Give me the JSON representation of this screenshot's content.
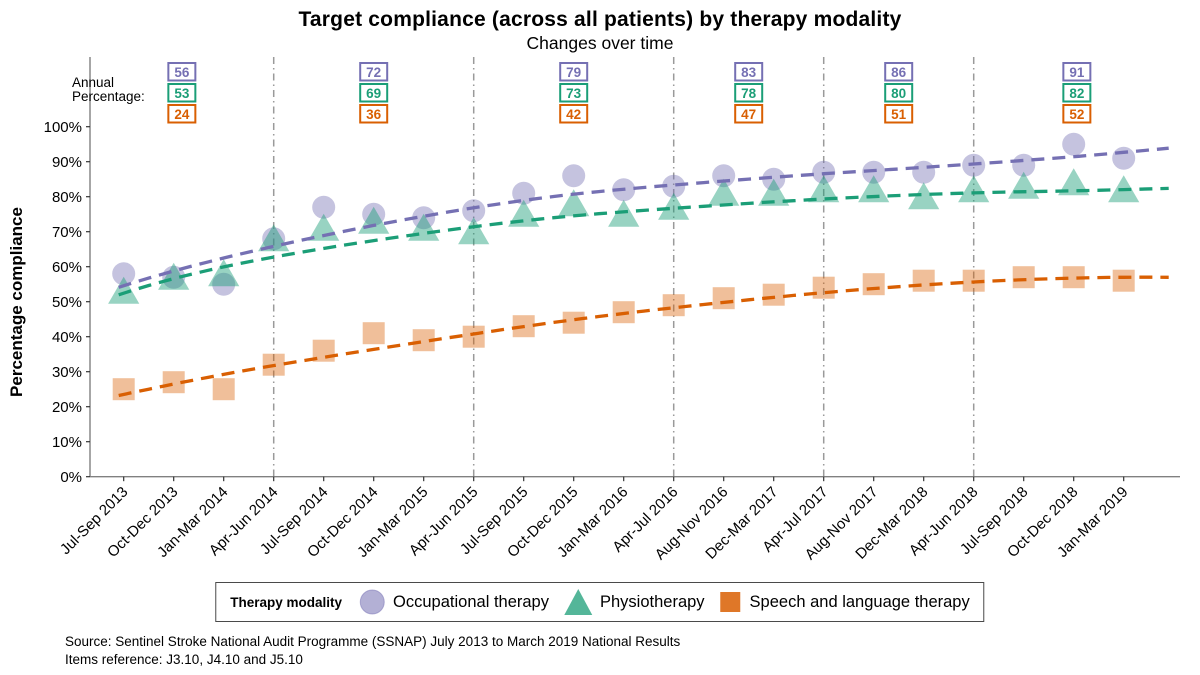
{
  "title": "Target compliance (across all patients) by therapy modality",
  "subtitle": "Changes over time",
  "annual_label": {
    "line1": "Annual",
    "line2": "Percentage:"
  },
  "chart_data": {
    "type": "scatter",
    "title": "Target compliance (across all patients) by therapy modality",
    "subtitle": "Changes over time",
    "xlabel": "",
    "ylabel": "Percentage compliance",
    "ylim": [
      0,
      100
    ],
    "ytick_values": [
      0,
      10,
      20,
      30,
      40,
      50,
      60,
      70,
      80,
      90,
      100
    ],
    "ytick_labels": [
      "0%",
      "10%",
      "20%",
      "30%",
      "40%",
      "50%",
      "60%",
      "70%",
      "80%",
      "90%",
      "100%"
    ],
    "grid": false,
    "legend_position": "bottom",
    "trendlines": "dashed loess per series",
    "categories": [
      "Jul-Sep 2013",
      "Oct-Dec 2013",
      "Jan-Mar 2014",
      "Apr-Jun 2014",
      "Jul-Sep 2014",
      "Oct-Dec 2014",
      "Jan-Mar 2015",
      "Apr-Jun 2015",
      "Jul-Sep 2015",
      "Oct-Dec 2015",
      "Jan-Mar 2016",
      "Apr-Jul 2016",
      "Aug-Nov 2016",
      "Dec-Mar 2017",
      "Apr-Jul 2017",
      "Aug-Nov 2017",
      "Dec-Mar 2018",
      "Apr-Jun 2018",
      "Jul-Sep 2018",
      "Oct-Dec 2018",
      "Jan-Mar 2019"
    ],
    "series": [
      {
        "name": "Occupational therapy",
        "marker": "circle",
        "color": "#7570b3",
        "values": [
          58,
          57,
          55,
          68,
          77,
          75,
          74,
          76,
          81,
          86,
          82,
          83,
          86,
          85,
          87,
          87,
          87,
          89,
          89,
          95,
          91
        ]
      },
      {
        "name": "Physiotherapy",
        "marker": "triangle",
        "color": "#1b9e77",
        "values": [
          52,
          56,
          57,
          67,
          70,
          72,
          70,
          69,
          74,
          77,
          74,
          76,
          80,
          80,
          81,
          81,
          79,
          81,
          82,
          83,
          81
        ]
      },
      {
        "name": "Speech and language therapy",
        "marker": "square",
        "color": "#d95f02",
        "values": [
          25,
          27,
          25,
          32,
          36,
          41,
          39,
          40,
          43,
          44,
          47,
          49,
          51,
          52,
          54,
          55,
          56,
          56,
          57,
          57,
          56
        ]
      }
    ],
    "year_divider_indices": [
      3,
      7,
      11,
      14,
      17
    ],
    "annual_percentages": [
      [
        56,
        53,
        24
      ],
      [
        72,
        69,
        36
      ],
      [
        79,
        73,
        42
      ],
      [
        83,
        78,
        47
      ],
      [
        86,
        80,
        51
      ],
      [
        91,
        82,
        52
      ]
    ]
  },
  "legend": {
    "title": "Therapy modality",
    "items": [
      {
        "label": "Occupational therapy"
      },
      {
        "label": "Physiotherapy"
      },
      {
        "label": "Speech and language therapy"
      }
    ]
  },
  "footer": {
    "line1": "Source: Sentinel Stroke National Audit Programme (SSNAP) July 2013 to March 2019 National Results",
    "line2": "Items reference: J3.10, J4.10 and J5.10"
  }
}
